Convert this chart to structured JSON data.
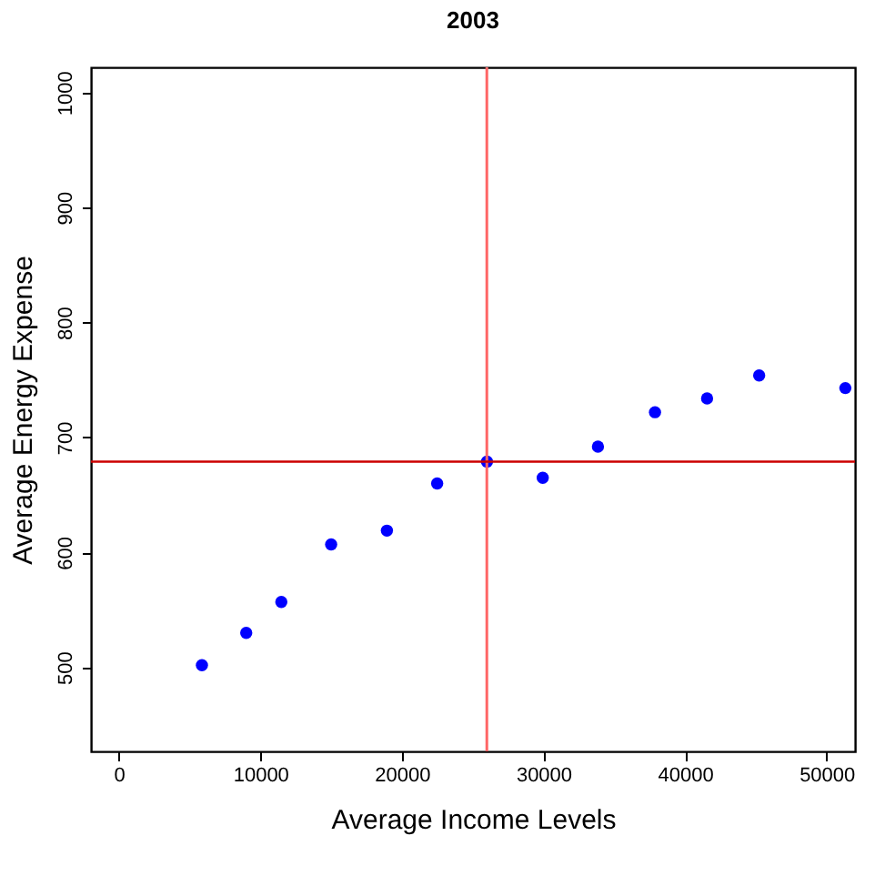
{
  "chart_data": {
    "type": "scatter",
    "title": "2003",
    "xlabel": "Average Income Levels",
    "ylabel": "Average Energy Expense",
    "x": [
      5870,
      9000,
      11480,
      15000,
      18940,
      22490,
      26010,
      29950,
      33850,
      37880,
      41560,
      45240,
      51330
    ],
    "series": [
      {
        "color": "#0000ff",
        "values": [
          502,
          530,
          557,
          607,
          619,
          660,
          679,
          665,
          692,
          722,
          734,
          754,
          743
        ]
      }
    ],
    "xlim": [
      -1970,
      52010
    ],
    "ylim": [
      427,
      1022
    ],
    "xticks": [
      0,
      10000,
      20000,
      30000,
      40000,
      50000
    ],
    "yticks": [
      500,
      600,
      700,
      800,
      900,
      1000
    ],
    "ref_lines": [
      {
        "axis": "x",
        "value": 26000,
        "color": "#ff6666"
      },
      {
        "axis": "y",
        "value": 679,
        "color": "#cc0000"
      }
    ],
    "marker": "circle",
    "grid": false
  }
}
